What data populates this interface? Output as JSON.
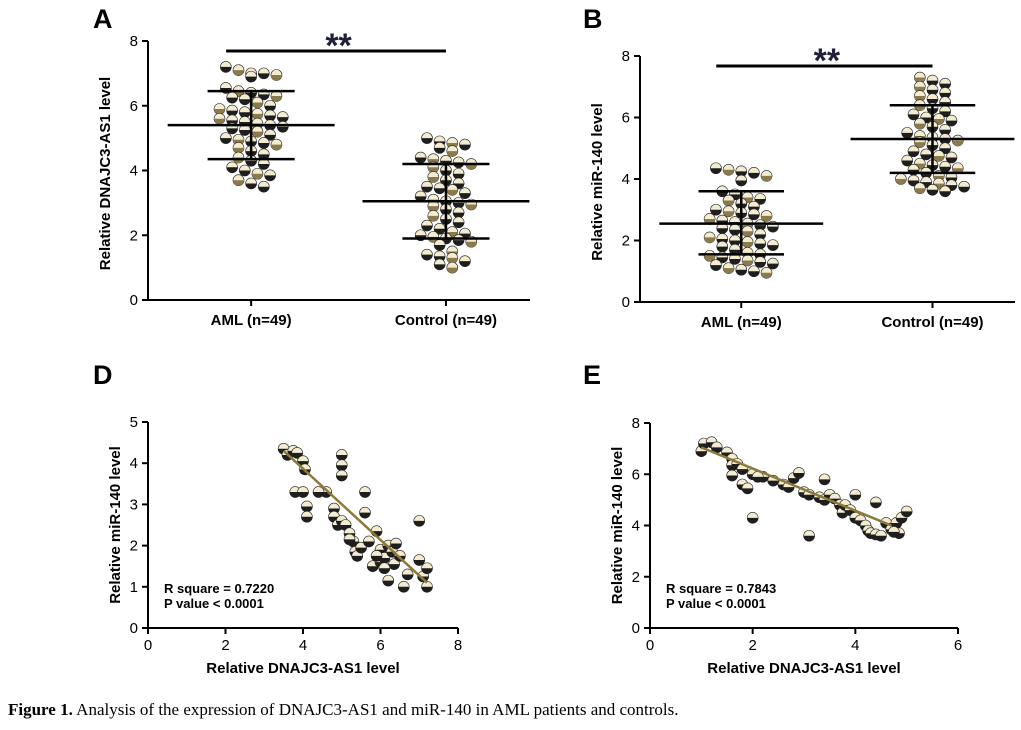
{
  "caption": {
    "label": "Figure 1.",
    "text": " Analysis of the expression of DNAJC3-AS1 and miR-140 in AML patients and controls."
  },
  "colors": {
    "dot_top": "#f3ecd0",
    "dot_bottom": "#1e1e1e",
    "dot_bottom_alt": "#8b7a4c",
    "fit_line": "#8b7a3a",
    "axis": "#000000",
    "sig": "#1f1f3a"
  },
  "chart_data": [
    {
      "type": "scatter",
      "panel": "A",
      "ylabel": "Relative DNAJC3-AS1 level",
      "xlabel": "",
      "ylim": [
        0,
        8
      ],
      "yticks": [
        0,
        2,
        4,
        6,
        8
      ],
      "categories": [
        "AML (n=49)",
        "Control (n=49)"
      ],
      "significance": "**",
      "summary": [
        {
          "mean": 5.4,
          "sd_low": 4.35,
          "sd_high": 6.45
        },
        {
          "mean": 3.05,
          "sd_low": 1.9,
          "sd_high": 4.2
        }
      ],
      "series": [
        {
          "name": "AML (n=49)",
          "values": [
            7.2,
            7.1,
            7.0,
            7.0,
            6.95,
            6.9,
            6.55,
            6.45,
            6.4,
            6.35,
            6.3,
            6.25,
            6.2,
            6.1,
            6.0,
            5.9,
            5.85,
            5.8,
            5.75,
            5.7,
            5.65,
            5.6,
            5.55,
            5.5,
            5.45,
            5.4,
            5.35,
            5.3,
            5.25,
            5.2,
            5.1,
            5.0,
            4.95,
            4.9,
            4.85,
            4.8,
            4.7,
            4.6,
            4.5,
            4.4,
            4.3,
            4.2,
            4.1,
            4.0,
            3.9,
            3.85,
            3.7,
            3.6,
            3.5
          ]
        },
        {
          "name": "Control (n=49)",
          "values": [
            5.0,
            4.9,
            4.85,
            4.8,
            4.7,
            4.6,
            4.4,
            4.35,
            4.3,
            4.25,
            4.2,
            4.1,
            4.0,
            3.9,
            3.8,
            3.7,
            3.6,
            3.5,
            3.45,
            3.4,
            3.3,
            3.2,
            3.1,
            3.05,
            3.0,
            2.95,
            2.9,
            2.8,
            2.7,
            2.6,
            2.5,
            2.4,
            2.3,
            2.2,
            2.1,
            2.05,
            2.0,
            1.95,
            1.9,
            1.85,
            1.8,
            1.7,
            1.5,
            1.4,
            1.35,
            1.3,
            1.2,
            1.1,
            1.0
          ]
        }
      ]
    },
    {
      "type": "scatter",
      "panel": "B",
      "ylabel": "Relative miR-140 level",
      "xlabel": "",
      "ylim": [
        0,
        8
      ],
      "yticks": [
        0,
        2,
        4,
        6,
        8
      ],
      "categories": [
        "AML (n=49)",
        "Control (n=49)"
      ],
      "significance": "**",
      "summary": [
        {
          "mean": 2.55,
          "sd_low": 1.55,
          "sd_high": 3.6
        },
        {
          "mean": 5.3,
          "sd_low": 4.2,
          "sd_high": 6.4
        }
      ],
      "series": [
        {
          "name": "AML (n=49)",
          "values": [
            4.35,
            4.3,
            4.25,
            4.2,
            4.1,
            3.95,
            3.6,
            3.5,
            3.4,
            3.35,
            3.3,
            3.2,
            3.1,
            3.0,
            2.95,
            2.9,
            2.85,
            2.8,
            2.7,
            2.65,
            2.6,
            2.55,
            2.5,
            2.45,
            2.4,
            2.35,
            2.3,
            2.2,
            2.1,
            2.05,
            2.0,
            1.95,
            1.9,
            1.85,
            1.8,
            1.7,
            1.6,
            1.55,
            1.5,
            1.45,
            1.4,
            1.35,
            1.3,
            1.25,
            1.2,
            1.1,
            1.05,
            1.0,
            0.95
          ]
        },
        {
          "name": "Control (n=49)",
          "values": [
            7.3,
            7.2,
            7.1,
            7.0,
            6.9,
            6.8,
            6.7,
            6.6,
            6.5,
            6.4,
            6.3,
            6.2,
            6.1,
            6.0,
            5.95,
            5.9,
            5.8,
            5.7,
            5.6,
            5.5,
            5.4,
            5.35,
            5.3,
            5.25,
            5.2,
            5.1,
            5.0,
            4.9,
            4.8,
            4.75,
            4.7,
            4.6,
            4.5,
            4.45,
            4.4,
            4.35,
            4.3,
            4.2,
            4.1,
            4.05,
            4.0,
            3.95,
            3.9,
            3.85,
            3.8,
            3.75,
            3.7,
            3.65,
            3.6
          ]
        }
      ]
    },
    {
      "type": "scatter",
      "panel": "D",
      "xlabel": "Relative DNAJC3-AS1 level",
      "ylabel": "Relative miR-140 level",
      "xlim": [
        0,
        8
      ],
      "ylim": [
        0,
        5
      ],
      "xticks": [
        0,
        2,
        4,
        6,
        8
      ],
      "yticks": [
        0,
        1,
        2,
        3,
        4,
        5
      ],
      "annotation": [
        "R square = 0.7220",
        "P value < 0.0001"
      ],
      "fit": {
        "x": [
          3.5,
          7.2
        ],
        "y": [
          4.3,
          1.1
        ]
      },
      "points": [
        [
          3.5,
          4.35
        ],
        [
          3.6,
          4.2
        ],
        [
          3.75,
          4.3
        ],
        [
          3.85,
          4.25
        ],
        [
          4.0,
          4.05
        ],
        [
          4.05,
          3.85
        ],
        [
          3.8,
          3.3
        ],
        [
          4.0,
          3.3
        ],
        [
          4.1,
          2.95
        ],
        [
          4.1,
          2.7
        ],
        [
          4.6,
          3.3
        ],
        [
          4.8,
          2.9
        ],
        [
          4.8,
          2.7
        ],
        [
          4.9,
          2.5
        ],
        [
          5.0,
          4.2
        ],
        [
          5.0,
          3.95
        ],
        [
          5.0,
          3.7
        ],
        [
          5.0,
          2.6
        ],
        [
          5.1,
          2.5
        ],
        [
          5.2,
          2.3
        ],
        [
          5.3,
          2.1
        ],
        [
          5.35,
          1.85
        ],
        [
          5.4,
          1.75
        ],
        [
          5.5,
          1.95
        ],
        [
          5.6,
          3.3
        ],
        [
          5.6,
          2.8
        ],
        [
          5.7,
          2.1
        ],
        [
          5.8,
          1.5
        ],
        [
          5.9,
          2.35
        ],
        [
          6.0,
          1.9
        ],
        [
          6.0,
          1.6
        ],
        [
          6.1,
          1.7
        ],
        [
          6.2,
          2.0
        ],
        [
          6.2,
          1.15
        ],
        [
          6.3,
          1.85
        ],
        [
          6.35,
          1.55
        ],
        [
          6.5,
          1.75
        ],
        [
          6.6,
          1.0
        ],
        [
          6.7,
          1.3
        ],
        [
          7.0,
          2.6
        ],
        [
          7.0,
          1.65
        ],
        [
          7.1,
          1.25
        ],
        [
          7.2,
          1.45
        ],
        [
          7.2,
          1.0
        ],
        [
          6.4,
          2.05
        ],
        [
          5.9,
          1.75
        ],
        [
          4.4,
          3.3
        ],
        [
          5.2,
          2.15
        ],
        [
          6.1,
          1.45
        ]
      ]
    },
    {
      "type": "scatter",
      "panel": "E",
      "xlabel": "Relative DNAJC3-AS1 level",
      "ylabel": "Relative miR-140 level",
      "xlim": [
        0,
        6
      ],
      "ylim": [
        0,
        8
      ],
      "xticks": [
        0,
        2,
        4,
        6
      ],
      "yticks": [
        0,
        2,
        4,
        6,
        8
      ],
      "annotation": [
        "R square = 0.7843",
        "P value < 0.0001"
      ],
      "fit": {
        "x": [
          1.0,
          4.7
        ],
        "y": [
          7.05,
          4.0
        ]
      },
      "points": [
        [
          1.0,
          6.9
        ],
        [
          1.05,
          7.2
        ],
        [
          1.2,
          7.25
        ],
        [
          1.3,
          7.05
        ],
        [
          1.5,
          6.85
        ],
        [
          1.6,
          6.6
        ],
        [
          1.6,
          6.35
        ],
        [
          1.7,
          6.4
        ],
        [
          1.6,
          5.95
        ],
        [
          1.8,
          6.2
        ],
        [
          1.8,
          5.6
        ],
        [
          1.9,
          5.45
        ],
        [
          2.0,
          6.0
        ],
        [
          2.0,
          4.3
        ],
        [
          2.2,
          5.9
        ],
        [
          2.4,
          5.75
        ],
        [
          2.6,
          5.6
        ],
        [
          2.7,
          5.5
        ],
        [
          2.8,
          5.85
        ],
        [
          2.9,
          6.05
        ],
        [
          3.0,
          5.3
        ],
        [
          3.1,
          5.2
        ],
        [
          3.1,
          3.6
        ],
        [
          3.3,
          5.1
        ],
        [
          3.4,
          5.8
        ],
        [
          3.4,
          5.0
        ],
        [
          3.5,
          5.2
        ],
        [
          3.6,
          5.05
        ],
        [
          3.7,
          4.8
        ],
        [
          3.75,
          4.5
        ],
        [
          3.8,
          4.8
        ],
        [
          3.9,
          4.6
        ],
        [
          4.0,
          5.2
        ],
        [
          4.0,
          4.3
        ],
        [
          4.1,
          4.2
        ],
        [
          4.2,
          4.0
        ],
        [
          4.25,
          3.8
        ],
        [
          4.3,
          3.7
        ],
        [
          4.4,
          3.65
        ],
        [
          4.4,
          4.9
        ],
        [
          4.5,
          3.6
        ],
        [
          4.6,
          4.1
        ],
        [
          4.7,
          3.85
        ],
        [
          4.8,
          4.1
        ],
        [
          4.85,
          3.7
        ],
        [
          4.9,
          4.3
        ],
        [
          5.0,
          4.55
        ],
        [
          4.75,
          3.75
        ],
        [
          2.1,
          5.9
        ]
      ]
    }
  ]
}
